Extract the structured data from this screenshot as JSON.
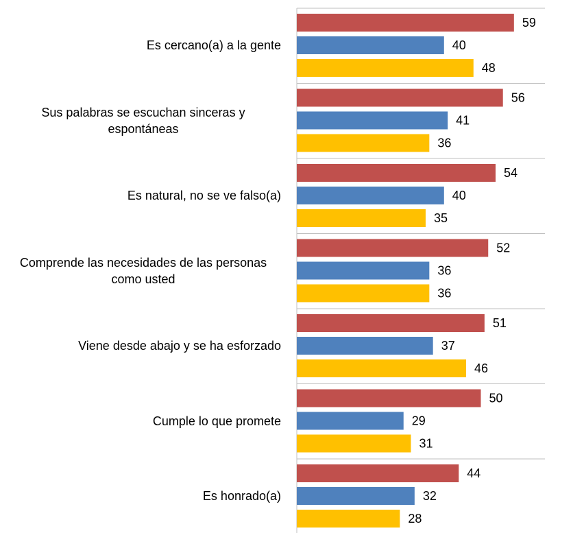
{
  "chart_data": {
    "type": "bar",
    "orientation": "horizontal",
    "categories": [
      "Es cercano(a) a la gente",
      "Sus palabras se escuchan sinceras y espontáneas",
      "Es natural, no se ve falso(a)",
      "Comprende las necesidades de las personas como usted",
      "Viene desde abajo y se ha esforzado",
      "Cumple lo que promete",
      "Es honrado(a)"
    ],
    "series": [
      {
        "color": "#c0504d",
        "values": [
          59,
          56,
          54,
          52,
          51,
          50,
          44
        ]
      },
      {
        "color": "#4f81bd",
        "values": [
          40,
          41,
          40,
          36,
          37,
          29,
          32
        ]
      },
      {
        "color": "#ffc000",
        "values": [
          48,
          36,
          35,
          36,
          46,
          31,
          28
        ]
      }
    ],
    "xlim": [
      0,
      100
    ]
  }
}
